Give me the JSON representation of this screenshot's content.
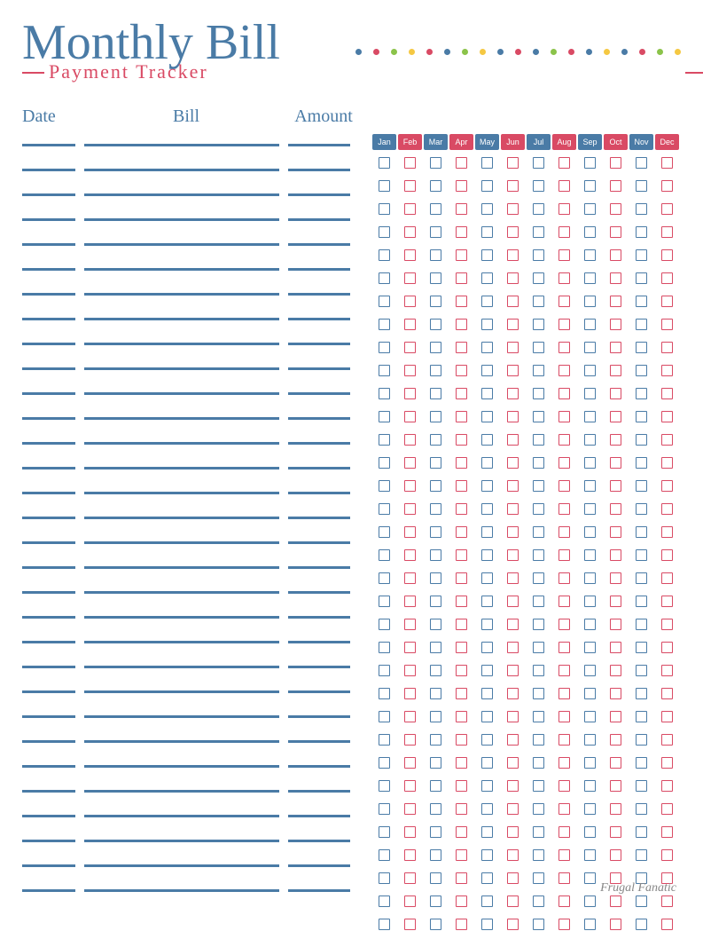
{
  "title": {
    "main": "Monthly Bill",
    "sub": "Payment Tracker"
  },
  "columns": {
    "date": "Date",
    "bill": "Bill",
    "amount": "Amount"
  },
  "months": [
    {
      "label": "Jan",
      "color": "#4a7ba6"
    },
    {
      "label": "Feb",
      "color": "#d94a64"
    },
    {
      "label": "Mar",
      "color": "#4a7ba6"
    },
    {
      "label": "Apr",
      "color": "#d94a64"
    },
    {
      "label": "May",
      "color": "#4a7ba6"
    },
    {
      "label": "Jun",
      "color": "#d94a64"
    },
    {
      "label": "Jul",
      "color": "#4a7ba6"
    },
    {
      "label": "Aug",
      "color": "#d94a64"
    },
    {
      "label": "Sep",
      "color": "#4a7ba6"
    },
    {
      "label": "Oct",
      "color": "#d94a64"
    },
    {
      "label": "Nov",
      "color": "#4a7ba6"
    },
    {
      "label": "Dec",
      "color": "#d94a64"
    }
  ],
  "dot_colors": [
    "#4a7ba6",
    "#d94a64",
    "#8bc34a",
    "#f5c842",
    "#d94a64",
    "#4a7ba6",
    "#8bc34a",
    "#f5c842",
    "#4a7ba6",
    "#d94a64",
    "#4a7ba6",
    "#8bc34a",
    "#d94a64",
    "#4a7ba6",
    "#f5c842",
    "#4a7ba6",
    "#d94a64",
    "#8bc34a",
    "#f5c842"
  ],
  "row_count": 31,
  "checkbox_row_count": 34,
  "colors": {
    "blue": "#4a7ba6",
    "pink": "#d94a64",
    "line": "#4a7ba6"
  },
  "footer": "Frugal Fanatic"
}
